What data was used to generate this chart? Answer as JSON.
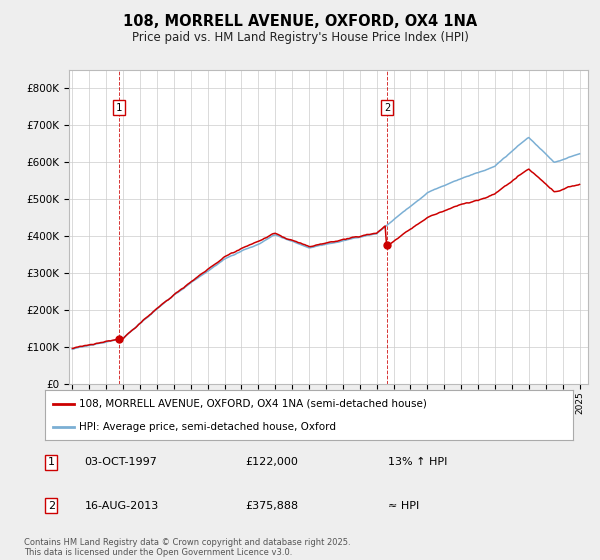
{
  "title": "108, MORRELL AVENUE, OXFORD, OX4 1NA",
  "subtitle": "Price paid vs. HM Land Registry's House Price Index (HPI)",
  "ylabel_ticks": [
    "£0",
    "£100K",
    "£200K",
    "£300K",
    "£400K",
    "£500K",
    "£600K",
    "£700K",
    "£800K"
  ],
  "ytick_values": [
    0,
    100000,
    200000,
    300000,
    400000,
    500000,
    600000,
    700000,
    800000
  ],
  "ylim": [
    0,
    850000
  ],
  "xlim_start": 1994.8,
  "xlim_end": 2025.5,
  "red_line_color": "#cc0000",
  "blue_line_color": "#7bafd4",
  "background_color": "#eeeeee",
  "plot_bg_color": "#ffffff",
  "grid_color": "#cccccc",
  "sale1_x": 1997.75,
  "sale1_y": 122000,
  "sale2_x": 2013.62,
  "sale2_y": 375888,
  "vline_color": "#cc0000",
  "legend_line1": "108, MORRELL AVENUE, OXFORD, OX4 1NA (semi-detached house)",
  "legend_line2": "HPI: Average price, semi-detached house, Oxford",
  "annotation1_date": "03-OCT-1997",
  "annotation1_price": "£122,000",
  "annotation1_hpi": "13% ↑ HPI",
  "annotation2_date": "16-AUG-2013",
  "annotation2_price": "£375,888",
  "annotation2_hpi": "≈ HPI",
  "footer": "Contains HM Land Registry data © Crown copyright and database right 2025.\nThis data is licensed under the Open Government Licence v3.0."
}
